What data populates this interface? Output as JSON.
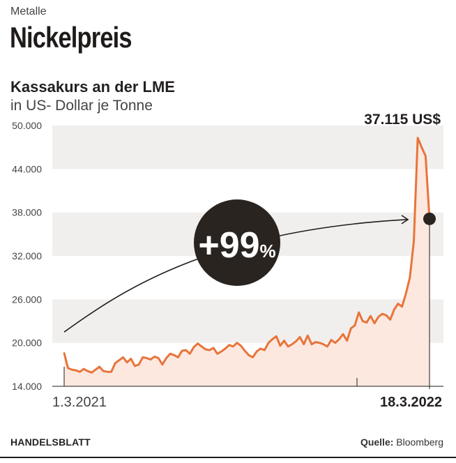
{
  "kicker": "Metalle",
  "headline": "Nickelpreis",
  "chart_data": {
    "type": "line",
    "title": "Kassakurs an der LME",
    "subtitle": "in US- Dollar je Tonne",
    "ylim": [
      14000,
      50000
    ],
    "y_ticks": [
      14000,
      20000,
      26000,
      32000,
      38000,
      44000,
      50000
    ],
    "y_tick_labels": [
      "14.000",
      "20.000",
      "26.000",
      "32.000",
      "38.000",
      "44.000",
      "50.000"
    ],
    "x_tick_labels": [
      "1.3.2021",
      "18.3.2022"
    ],
    "last_value_label": "37.115 US$",
    "change_label": "+99",
    "change_unit": "%",
    "grid": "horizontal bands",
    "colors": {
      "line": "#e8743b",
      "area": "#fce8df",
      "band": "#f0efed",
      "text": "#231f20"
    },
    "series": [
      {
        "values": [
          18600,
          16500,
          16300,
          16200,
          16000,
          16400,
          16100,
          15900,
          16300,
          16700,
          16100,
          16000,
          16000,
          17200,
          17600,
          18000,
          17300,
          17800,
          16800,
          17000,
          18000,
          17900,
          17700,
          18100,
          17900,
          17000,
          17900,
          18500,
          18300,
          18000,
          18900,
          19000,
          18500,
          19400,
          19900,
          19500,
          19100,
          19000,
          19300,
          18500,
          18800,
          19200,
          19700,
          19500,
          20000,
          19600,
          18900,
          18300,
          18000,
          18800,
          19200,
          19000,
          20000,
          20500,
          20900,
          19600,
          20300,
          19500,
          19800,
          20200,
          20800,
          19800,
          21000,
          19800,
          20100,
          20000,
          19800,
          19500,
          20400,
          20000,
          20500,
          21200,
          20300,
          22000,
          22400,
          24200,
          23000,
          22800,
          23700,
          22700,
          23600,
          24000,
          23800,
          23200,
          24600,
          25400,
          25000,
          26800,
          29000,
          34000,
          48300,
          47000,
          45800,
          37115
        ]
      }
    ]
  },
  "footer": {
    "brand": "HANDELSBLATT",
    "source_label": "Quelle:",
    "source_value": "Bloomberg"
  }
}
